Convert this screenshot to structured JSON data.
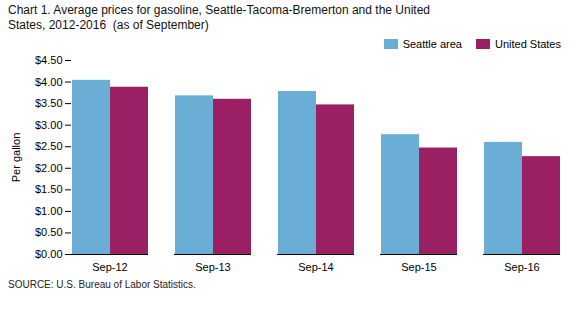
{
  "chart_data": {
    "type": "bar",
    "title": "Chart 1. Average prices for gasoline, Seattle-Tacoma-Bremerton and the United\nStates, 2012-2016  (as of September)",
    "ylabel": "Per gallon",
    "source": "SOURCE: U.S. Bureau of Labor Statistics.",
    "categories": [
      "Sep-12",
      "Sep-13",
      "Sep-14",
      "Sep-15",
      "Sep-16"
    ],
    "series": [
      {
        "name": "Seattle area",
        "color": "#6aaed6",
        "values": [
          4.04,
          3.68,
          3.78,
          2.78,
          2.6
        ]
      },
      {
        "name": "United States",
        "color": "#9b2063",
        "values": [
          3.88,
          3.6,
          3.47,
          2.47,
          2.27
        ]
      }
    ],
    "ylim": [
      0,
      4.5
    ],
    "yticks": [
      {
        "value": 0.0,
        "label": "$0.00"
      },
      {
        "value": 0.5,
        "label": "$0.50"
      },
      {
        "value": 1.0,
        "label": "$1.00"
      },
      {
        "value": 1.5,
        "label": "$1.50"
      },
      {
        "value": 2.0,
        "label": "$2.00"
      },
      {
        "value": 2.5,
        "label": "$2.50"
      },
      {
        "value": 3.0,
        "label": "$3.00"
      },
      {
        "value": 3.5,
        "label": "$3.50"
      },
      {
        "value": 4.0,
        "label": "$4.00"
      },
      {
        "value": 4.5,
        "label": "$4.50"
      }
    ],
    "legend": "upper right",
    "grid": false
  }
}
